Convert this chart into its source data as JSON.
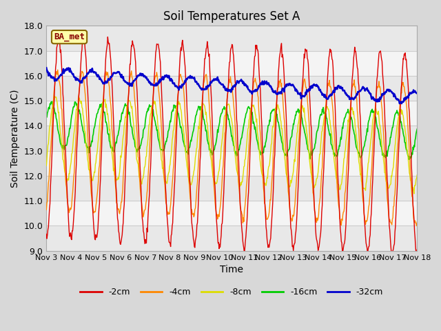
{
  "title": "Soil Temperatures Set A",
  "xlabel": "Time",
  "ylabel": "Soil Temperature (C)",
  "ylim": [
    9.0,
    18.0
  ],
  "yticks": [
    9.0,
    10.0,
    11.0,
    12.0,
    13.0,
    14.0,
    15.0,
    16.0,
    17.0,
    18.0
  ],
  "xtick_labels": [
    "Nov 3",
    "Nov 4",
    "Nov 5",
    "Nov 6",
    "Nov 7",
    "Nov 8",
    "Nov 9",
    "Nov 10",
    "Nov 11",
    "Nov 12",
    "Nov 13",
    "Nov 14",
    "Nov 15",
    "Nov 16",
    "Nov 17",
    "Nov 18"
  ],
  "series_colors": {
    "-2cm": "#dd0000",
    "-4cm": "#ff8800",
    "-8cm": "#dddd00",
    "-16cm": "#00cc00",
    "-32cm": "#0000cc"
  },
  "legend_label": "BA_met",
  "legend_box_facecolor": "#ffffaa",
  "legend_box_edgecolor": "#886600",
  "plot_bg_light": "#f0f0f0",
  "plot_bg_dark": "#e0e0e0",
  "grid_color": "#cccccc",
  "figsize": [
    6.4,
    4.8
  ],
  "dpi": 100,
  "n_days": 15,
  "pts_per_day": 48,
  "seed": 7,
  "mean_2": 13.5,
  "slope_2": -0.04,
  "amp_2": 4.0,
  "phase_2": -1.5708,
  "mean_4": 13.4,
  "slope_4": -0.038,
  "amp_4": 2.8,
  "phase_4": -1.2,
  "mean_8": 13.5,
  "slope_8": -0.032,
  "amp_8": 1.6,
  "phase_8": -0.6,
  "mean_16": 14.0,
  "slope_16": -0.025,
  "amp_16": 0.9,
  "phase_16": 0.3,
  "mean_32": 16.1,
  "slope_32": -0.065,
  "amp_32": 0.22,
  "phase_32": 2.5
}
